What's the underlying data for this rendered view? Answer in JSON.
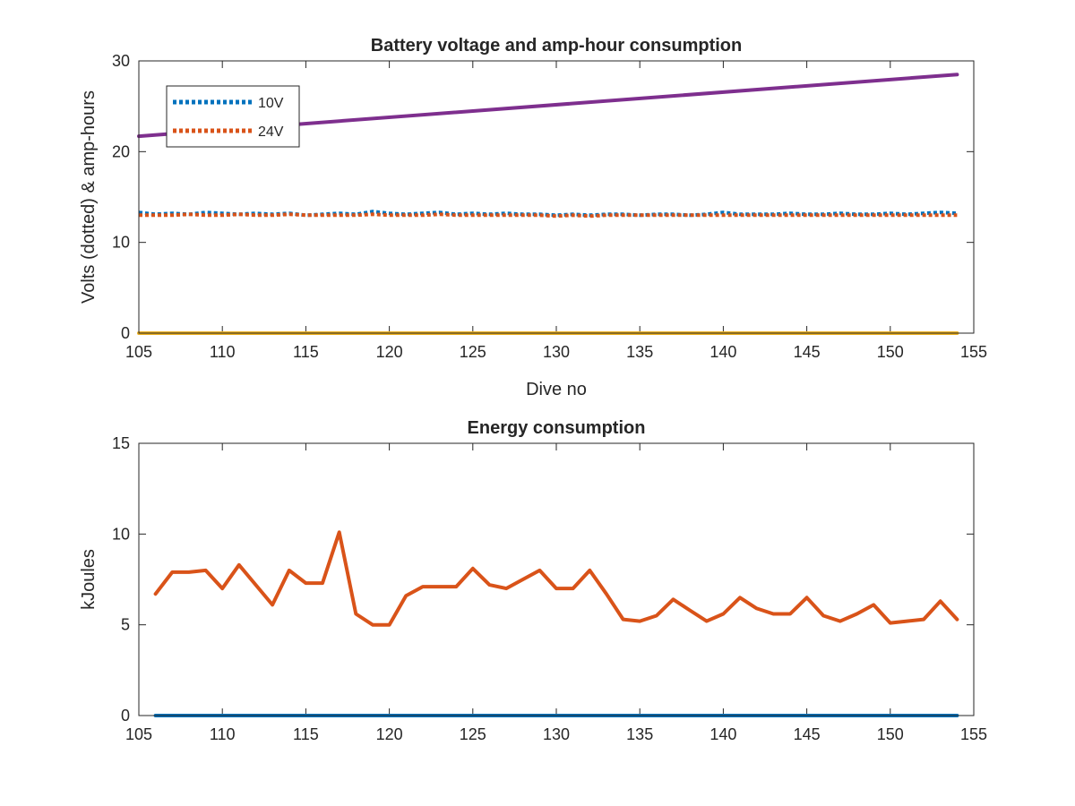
{
  "chart_data": [
    {
      "type": "line",
      "title": "Battery voltage and amp-hour consumption",
      "xlabel": "Dive no",
      "ylabel": "Volts (dotted) & amp-hours",
      "xlim": [
        105,
        155
      ],
      "ylim": [
        0,
        30
      ],
      "xticks": [
        105,
        110,
        115,
        120,
        125,
        130,
        135,
        140,
        145,
        150,
        155
      ],
      "yticks": [
        0,
        10,
        20,
        30
      ],
      "grid": false,
      "legend_position": "top-left",
      "series": [
        {
          "name": "10V",
          "style": "dotted",
          "color": "#0072BD",
          "x": [
            105,
            106,
            107,
            108,
            109,
            110,
            111,
            112,
            113,
            114,
            115,
            116,
            117,
            118,
            119,
            120,
            121,
            122,
            123,
            124,
            125,
            126,
            127,
            128,
            129,
            130,
            131,
            132,
            133,
            134,
            135,
            136,
            137,
            138,
            139,
            140,
            141,
            142,
            143,
            144,
            145,
            146,
            147,
            148,
            149,
            150,
            151,
            152,
            153,
            154
          ],
          "y": [
            13.3,
            13.1,
            13.2,
            13.1,
            13.3,
            13.2,
            13.1,
            13.2,
            13.1,
            13.2,
            13.0,
            13.1,
            13.2,
            13.1,
            13.4,
            13.2,
            13.1,
            13.2,
            13.3,
            13.1,
            13.2,
            13.1,
            13.2,
            13.1,
            13.1,
            13.0,
            13.1,
            13.0,
            13.1,
            13.1,
            13.0,
            13.1,
            13.1,
            13.0,
            13.1,
            13.3,
            13.1,
            13.1,
            13.1,
            13.2,
            13.1,
            13.1,
            13.2,
            13.1,
            13.1,
            13.2,
            13.1,
            13.2,
            13.3,
            13.2
          ]
        },
        {
          "name": "24V",
          "style": "dotted",
          "color": "#D95319",
          "x": [
            105,
            106,
            107,
            108,
            109,
            110,
            111,
            112,
            113,
            114,
            115,
            116,
            117,
            118,
            119,
            120,
            121,
            122,
            123,
            124,
            125,
            126,
            127,
            128,
            129,
            130,
            131,
            132,
            133,
            134,
            135,
            136,
            137,
            138,
            139,
            140,
            141,
            142,
            143,
            144,
            145,
            146,
            147,
            148,
            149,
            150,
            151,
            152,
            153,
            154
          ],
          "y": [
            13.0,
            13.0,
            13.0,
            13.1,
            13.0,
            13.0,
            13.1,
            13.0,
            13.0,
            13.1,
            13.0,
            13.0,
            13.0,
            13.0,
            13.1,
            13.0,
            13.0,
            13.0,
            13.1,
            13.0,
            13.0,
            13.0,
            13.0,
            13.0,
            13.0,
            12.9,
            13.0,
            12.9,
            13.0,
            13.0,
            13.0,
            13.0,
            13.0,
            13.0,
            13.0,
            13.0,
            13.0,
            13.0,
            13.0,
            13.0,
            13.0,
            13.0,
            13.0,
            13.0,
            13.0,
            13.0,
            13.0,
            13.0,
            13.0,
            13.0
          ]
        },
        {
          "name": "",
          "style": "solid",
          "color": "#EDB120",
          "x": [
            105,
            154
          ],
          "y": [
            0,
            0
          ]
        },
        {
          "name": "",
          "style": "solid",
          "color": "#7E2F8E",
          "x": [
            105,
            154
          ],
          "y": [
            21.7,
            28.5
          ]
        }
      ]
    },
    {
      "type": "line",
      "title": "Energy consumption",
      "xlabel": "",
      "ylabel": "kJoules",
      "xlim": [
        105,
        155
      ],
      "ylim": [
        0,
        15
      ],
      "xticks": [
        105,
        110,
        115,
        120,
        125,
        130,
        135,
        140,
        145,
        150,
        155
      ],
      "yticks": [
        0,
        5,
        10,
        15
      ],
      "grid": false,
      "series": [
        {
          "name": "",
          "style": "solid",
          "color": "#D95319",
          "x": [
            106,
            107,
            108,
            109,
            110,
            111,
            112,
            113,
            114,
            115,
            116,
            117,
            118,
            119,
            120,
            121,
            122,
            123,
            124,
            125,
            126,
            127,
            128,
            129,
            130,
            131,
            132,
            133,
            134,
            135,
            136,
            137,
            138,
            139,
            140,
            141,
            142,
            143,
            144,
            145,
            146,
            147,
            148,
            149,
            150,
            151,
            152,
            153,
            154
          ],
          "y": [
            6.7,
            7.9,
            7.9,
            8.0,
            7.0,
            8.3,
            7.2,
            6.1,
            8.0,
            7.3,
            7.3,
            10.1,
            5.6,
            5.0,
            5.0,
            6.6,
            7.1,
            7.1,
            7.1,
            8.1,
            7.2,
            7.0,
            7.5,
            8.0,
            7.0,
            7.0,
            8.0,
            6.7,
            5.3,
            5.2,
            5.5,
            6.4,
            5.8,
            5.2,
            5.6,
            6.5,
            5.9,
            5.6,
            5.6,
            6.5,
            5.5,
            5.2,
            5.6,
            6.1,
            5.1,
            5.2,
            5.3,
            6.3,
            5.3
          ]
        },
        {
          "name": "",
          "style": "solid",
          "color": "#0072BD",
          "x": [
            106,
            154
          ],
          "y": [
            0,
            0
          ]
        }
      ]
    }
  ]
}
